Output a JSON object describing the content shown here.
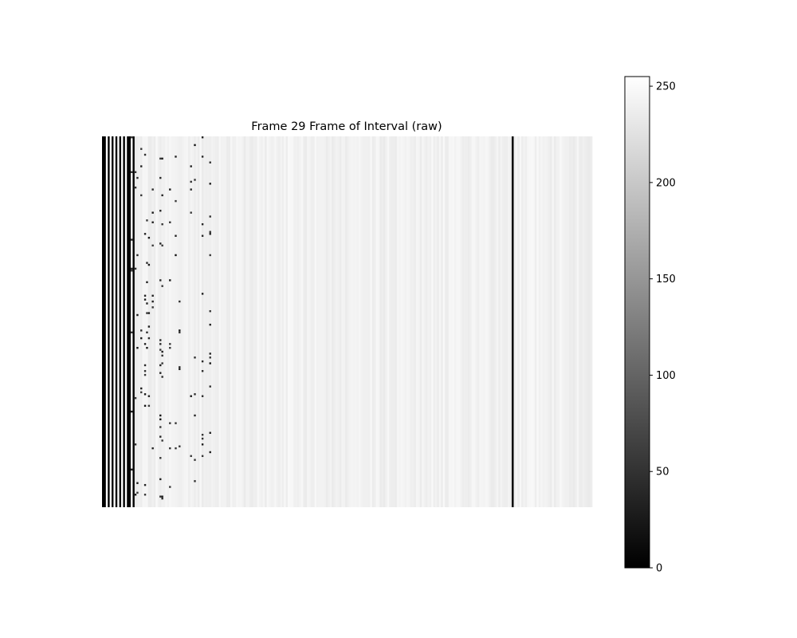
{
  "chart_data": {
    "type": "heatmap",
    "title": "Frame 29 Frame of Interval (raw)",
    "xlabel": "",
    "ylabel": "",
    "axes_visible": false,
    "colormap": "gray",
    "colormap_start_color": "#000000",
    "colormap_end_color": "#ffffff",
    "value_range": [
      0,
      255
    ],
    "colorbar": {
      "placement": "right",
      "ticks": [
        0,
        50,
        100,
        150,
        200,
        250
      ],
      "tick_labels": [
        "0",
        "50",
        "100",
        "150",
        "200",
        "250"
      ]
    },
    "image_columns": 256,
    "image_rows": 192,
    "dark_column_indices": [
      0,
      1,
      3,
      5,
      7,
      9,
      11,
      13,
      14,
      16,
      214
    ],
    "bright_column_value": 248
  }
}
